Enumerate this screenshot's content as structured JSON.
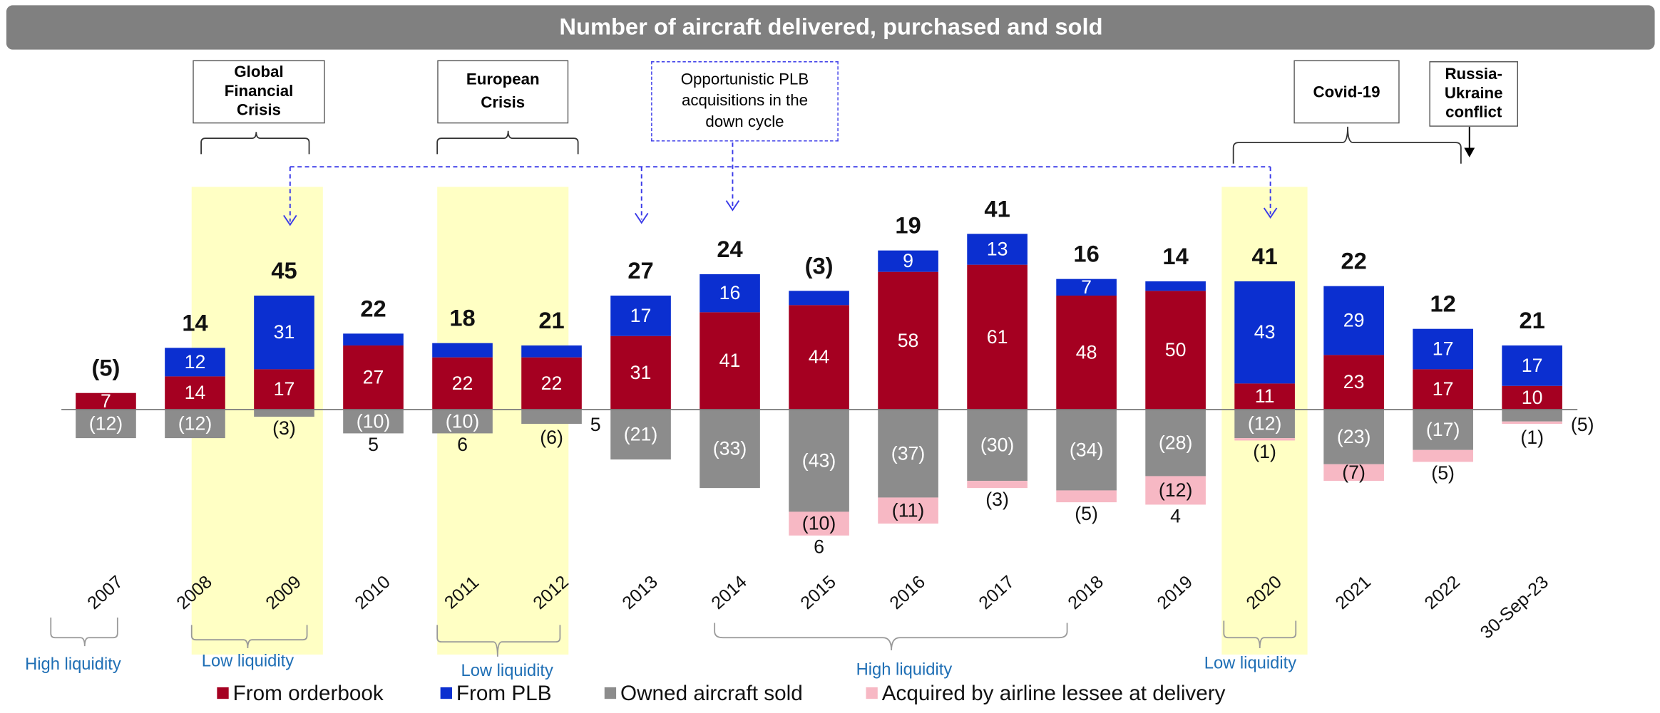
{
  "chart_data": {
    "type": "stacked_bar",
    "title": "Number of aircraft delivered, purchased and sold",
    "categories": [
      "2007",
      "2008",
      "2009",
      "2010",
      "2011",
      "2012",
      "2013",
      "2014",
      "2015",
      "2016",
      "2017",
      "2018",
      "2019",
      "2020",
      "2021",
      "2022",
      "30-Sep-23"
    ],
    "series": [
      {
        "name": "From orderbook",
        "color": "#a50021",
        "values": [
          7,
          14,
          17,
          27,
          22,
          22,
          31,
          41,
          44,
          58,
          61,
          48,
          50,
          11,
          23,
          17,
          10
        ]
      },
      {
        "name": "From PLB",
        "color": "#0b2fd0",
        "values": [
          null,
          12,
          31,
          5,
          6,
          5,
          17,
          16,
          6,
          9,
          13,
          7,
          4,
          43,
          29,
          17,
          17
        ]
      },
      {
        "name": "Owned aircraft sold",
        "color": "#8c8c8c",
        "values": [
          -12,
          -12,
          -3,
          -10,
          -10,
          -6,
          -21,
          -33,
          -43,
          -37,
          -30,
          -34,
          -28,
          -12,
          -23,
          -17,
          -5
        ],
        "value_labels": [
          "(12)",
          "(12)",
          "(3)",
          "(10)",
          "(10)",
          "(6)",
          "(21)",
          "(33)",
          "(43)",
          "(37)",
          "(30)",
          "(34)",
          "(28)",
          "(12)",
          "(23)",
          "(17)",
          "(5)"
        ]
      },
      {
        "name": "Acquired by airline lessee at delivery",
        "color": "#f7b8c4",
        "values": [
          null,
          null,
          null,
          null,
          null,
          null,
          null,
          null,
          -10,
          -11,
          -3,
          -5,
          -12,
          -1,
          -7,
          -5,
          -1
        ],
        "value_labels": [
          null,
          null,
          null,
          null,
          null,
          null,
          null,
          null,
          "(10)",
          "(11)",
          "(3)",
          "(5)",
          "(12)",
          "(1)",
          "(7)",
          "(5)",
          "(1)"
        ]
      }
    ],
    "totals": {
      "values": [
        -5,
        14,
        45,
        22,
        18,
        21,
        27,
        24,
        -3,
        19,
        41,
        16,
        14,
        41,
        22,
        12,
        21
      ],
      "value_labels": [
        "(5)",
        "14",
        "45",
        "22",
        "18",
        "21",
        "27",
        "24",
        "(3)",
        "19",
        "41",
        "16",
        "14",
        "41",
        "22",
        "12",
        "21"
      ]
    },
    "annotations": [
      "Global Financial Crisis",
      "European Crisis",
      "Opportunistic PLB acquisitions in the down cycle",
      "Covid-19",
      "Russia-Ukraine conflict"
    ],
    "liquidity_labels": [
      "High liquidity",
      "Low liquidity",
      "Low liquidity",
      "High liquidity",
      "Low liquidity"
    ]
  }
}
